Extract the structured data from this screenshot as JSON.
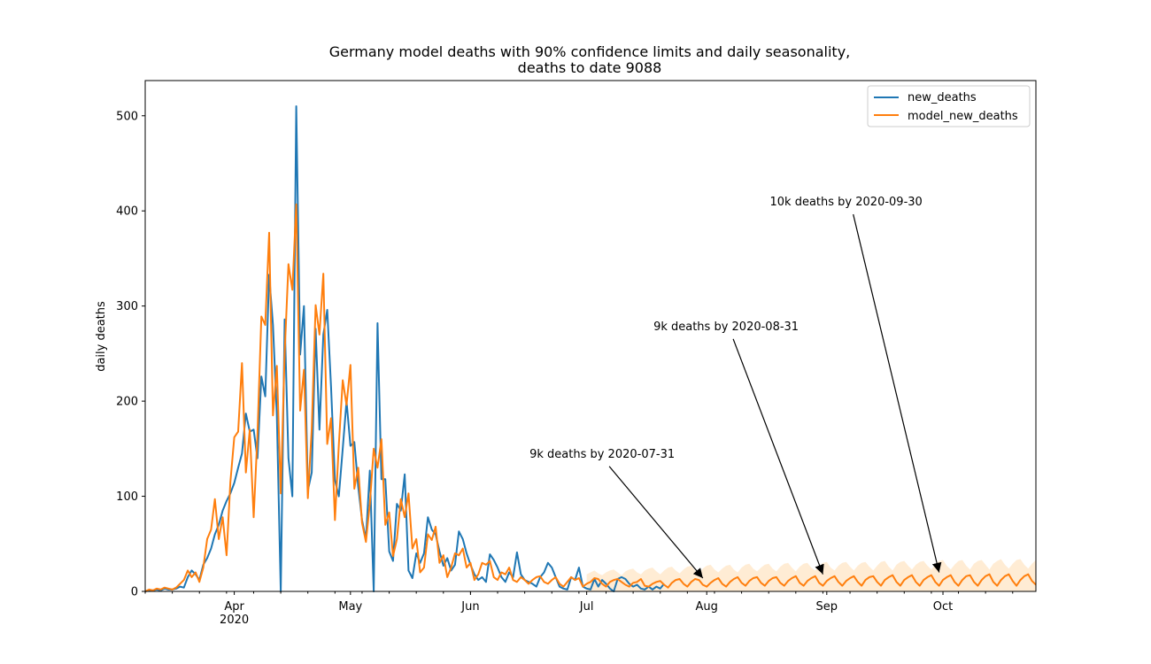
{
  "chart_data": {
    "type": "line",
    "title_line1": "Germany model deaths with 90% confidence limits and daily seasonality,",
    "title_line2": "deaths to date 9088",
    "ylabel": "daily deaths",
    "xlabel": "",
    "x_start": "2020-03-09",
    "x_end": "2020-10-25",
    "ylim": [
      0,
      537
    ],
    "y_ticks": [
      0,
      100,
      200,
      300,
      400,
      500
    ],
    "x_ticks": [
      {
        "date": "2020-04-01",
        "label": "Apr",
        "sublabel": "2020"
      },
      {
        "date": "2020-05-01",
        "label": "May",
        "sublabel": ""
      },
      {
        "date": "2020-06-01",
        "label": "Jun",
        "sublabel": ""
      },
      {
        "date": "2020-07-01",
        "label": "Jul",
        "sublabel": ""
      },
      {
        "date": "2020-08-01",
        "label": "Aug",
        "sublabel": ""
      },
      {
        "date": "2020-09-01",
        "label": "Sep",
        "sublabel": ""
      },
      {
        "date": "2020-10-01",
        "label": "Oct",
        "sublabel": ""
      }
    ],
    "grid": false,
    "legend_position": "top-right",
    "colors": {
      "new_deaths": "#1f77b4",
      "model_new_deaths": "#ff7f0e",
      "band": "#ffdfb8"
    },
    "series": [
      {
        "name": "new_deaths",
        "start_date": "2020-03-09",
        "values": [
          0,
          1,
          1,
          2,
          1,
          3,
          2,
          2,
          3,
          5,
          4,
          15,
          22,
          18,
          12,
          28,
          35,
          45,
          60,
          70,
          85,
          95,
          103,
          114,
          130,
          145,
          187,
          168,
          170,
          140,
          226,
          205,
          333,
          280,
          185,
          0,
          286,
          140,
          100,
          510,
          249,
          300,
          106,
          125,
          276,
          170,
          270,
          296,
          215,
          117,
          100,
          150,
          200,
          153,
          157,
          110,
          75,
          55,
          127,
          0,
          282,
          118,
          118,
          42,
          32,
          92,
          85,
          123,
          22,
          14,
          40,
          30,
          40,
          78,
          65,
          60,
          42,
          27,
          35,
          22,
          28,
          63,
          55,
          40,
          28,
          18,
          12,
          15,
          10,
          39,
          33,
          25,
          15,
          10,
          20,
          15,
          41,
          18,
          12,
          10,
          8,
          5,
          15,
          20,
          30,
          25,
          15,
          5,
          3,
          2,
          15,
          12,
          25,
          5,
          3,
          2,
          13,
          5,
          12,
          8,
          3,
          0,
          13,
          15,
          13,
          8,
          5,
          7,
          3,
          2,
          5,
          2,
          5,
          3,
          8
        ],
        "end_note": "series ends 2020-07-21"
      },
      {
        "name": "model_new_deaths",
        "start_date": "2020-03-09",
        "values": [
          0,
          2,
          1,
          3,
          2,
          4,
          3,
          2,
          4,
          8,
          12,
          22,
          15,
          20,
          10,
          25,
          55,
          65,
          97,
          55,
          78,
          38,
          115,
          162,
          168,
          240,
          125,
          170,
          78,
          165,
          289,
          280,
          377,
          185,
          237,
          103,
          250,
          344,
          317,
          407,
          190,
          233,
          98,
          171,
          301,
          270,
          334,
          155,
          182,
          75,
          154,
          222,
          196,
          238,
          108,
          130,
          72,
          52,
          92,
          150,
          130,
          160,
          70,
          83,
          37,
          55,
          97,
          78,
          103,
          45,
          55,
          20,
          25,
          60,
          54,
          68,
          30,
          38,
          15,
          25,
          40,
          38,
          45,
          25,
          30,
          12,
          18,
          30,
          28,
          32,
          15,
          12,
          20,
          18,
          25,
          12,
          10,
          15,
          12,
          8,
          12,
          15,
          16,
          10,
          8,
          12,
          15,
          8,
          5,
          10,
          15,
          12,
          14,
          5,
          8,
          10,
          14,
          13,
          8,
          5,
          10,
          12,
          13,
          10,
          7,
          5,
          9,
          10,
          13,
          6,
          5,
          8,
          10,
          11,
          7,
          4,
          9,
          12,
          13,
          8,
          5,
          10,
          13,
          12,
          7,
          5,
          9,
          12,
          14,
          8,
          5,
          10,
          13,
          15,
          9,
          6,
          11,
          14,
          15,
          9,
          6,
          11,
          14,
          15,
          9,
          6,
          11,
          14,
          16,
          9,
          6,
          11,
          14,
          16,
          9,
          6,
          11,
          14,
          16,
          10,
          6,
          11,
          14,
          16,
          10,
          6,
          12,
          15,
          16,
          10,
          6,
          12,
          15,
          17,
          10,
          6,
          12,
          15,
          17,
          10,
          6,
          12,
          15,
          17,
          10,
          6,
          12,
          15,
          17,
          10,
          6,
          12,
          16,
          17,
          10,
          6,
          12,
          16,
          18,
          10,
          6,
          12,
          16,
          18,
          11,
          6,
          12,
          16,
          18,
          11,
          7,
          12,
          16,
          18,
          11,
          7
        ]
      }
    ],
    "confidence_band": {
      "start_date": "2020-07-01",
      "lower": [
        0,
        0,
        0,
        0,
        0,
        0,
        0,
        0,
        0,
        0,
        0,
        0,
        0,
        0,
        0,
        0,
        0,
        0,
        0,
        0,
        0,
        0,
        0,
        0,
        0,
        0,
        0,
        0,
        0,
        0,
        0,
        0,
        0,
        0,
        0,
        0,
        0,
        0,
        0,
        0,
        0,
        0,
        0,
        0,
        0,
        0,
        0,
        0,
        0,
        0,
        0,
        0,
        0,
        0,
        0,
        0,
        0,
        0,
        0,
        0,
        0,
        0,
        0,
        0,
        0,
        0,
        0,
        0,
        0,
        0,
        0,
        0,
        0,
        0,
        0,
        0,
        0,
        0,
        0,
        0,
        0,
        0,
        0,
        0,
        0,
        0,
        0,
        0,
        0,
        0,
        0,
        0,
        0,
        0,
        0,
        0,
        0,
        0,
        0,
        0,
        0,
        0,
        0,
        0,
        0,
        0,
        0,
        0,
        0,
        0,
        0,
        0,
        0,
        0,
        0,
        0,
        0,
        0
      ],
      "upper": [
        18,
        20,
        22,
        19,
        17,
        20,
        22,
        23,
        20,
        17,
        21,
        23,
        24,
        20,
        18,
        22,
        24,
        25,
        21,
        18,
        22,
        25,
        26,
        22,
        19,
        23,
        26,
        27,
        22,
        19,
        24,
        27,
        28,
        23,
        20,
        24,
        27,
        28,
        23,
        20,
        25,
        28,
        29,
        24,
        21,
        25,
        28,
        29,
        24,
        21,
        26,
        29,
        30,
        25,
        21,
        26,
        29,
        30,
        25,
        22,
        26,
        30,
        31,
        25,
        22,
        27,
        30,
        31,
        26,
        22,
        27,
        30,
        31,
        26,
        22,
        27,
        31,
        32,
        26,
        22,
        28,
        31,
        32,
        27,
        23,
        28,
        31,
        32,
        27,
        23,
        28,
        32,
        33,
        27,
        23,
        28,
        32,
        33,
        27,
        23,
        29,
        32,
        33,
        28,
        23,
        29,
        32,
        34,
        28,
        24,
        29,
        33,
        34,
        28,
        24,
        29,
        33,
        34
      ]
    },
    "annotations": [
      {
        "text": "9k deaths by 2020-07-31",
        "target_date": "2020-07-31",
        "target_value": 14,
        "text_date": "2020-07-05",
        "text_value": 137
      },
      {
        "text": "9k deaths by 2020-08-31",
        "target_date": "2020-08-31",
        "target_value": 18,
        "text_date": "2020-08-06",
        "text_value": 271
      },
      {
        "text": "10k deaths by 2020-09-30",
        "target_date": "2020-09-30",
        "target_value": 20,
        "text_date": "2020-09-06",
        "text_value": 402
      }
    ]
  }
}
